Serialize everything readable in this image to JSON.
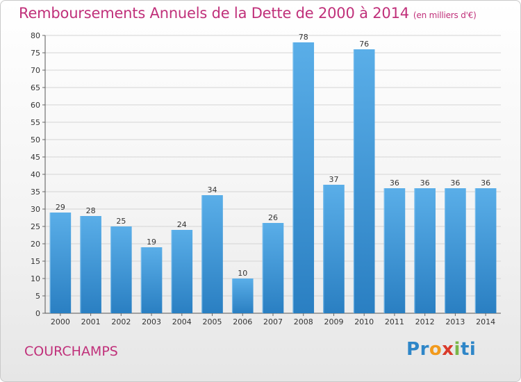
{
  "title": "Remboursements Annuels de la Dette de 2000 à 2014",
  "subtitle": "(en milliers d'€)",
  "commune": "COURCHAMPS",
  "logo": {
    "text": "Proxiti",
    "letters": [
      "P",
      "r",
      "o",
      "x",
      "i",
      "ti"
    ]
  },
  "colors": {
    "title": "#c0307a",
    "bar_light": "#5aaee8",
    "bar_dark": "#2a7fc2",
    "grid": "#d4d4d4"
  },
  "chart_data": {
    "type": "bar",
    "title": "Remboursements Annuels de la Dette de 2000 à 2014",
    "subtitle": "(en milliers d'€)",
    "xlabel": "",
    "ylabel": "",
    "categories": [
      "2000",
      "2001",
      "2002",
      "2003",
      "2004",
      "2005",
      "2006",
      "2007",
      "2008",
      "2009",
      "2010",
      "2011",
      "2012",
      "2013",
      "2014"
    ],
    "values": [
      29,
      28,
      25,
      19,
      24,
      34,
      10,
      26,
      78,
      37,
      76,
      36,
      36,
      36,
      36
    ],
    "ylim": [
      0,
      80
    ],
    "yticks": [
      0,
      5,
      10,
      15,
      20,
      25,
      30,
      35,
      40,
      45,
      50,
      55,
      60,
      65,
      70,
      75,
      80
    ],
    "grid": true,
    "data_labels": true
  }
}
